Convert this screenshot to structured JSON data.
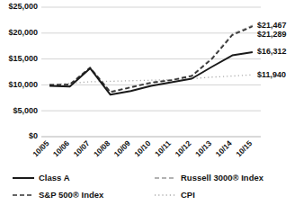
{
  "chart_data": {
    "type": "line",
    "categories": [
      "10/05",
      "10/06",
      "10/07",
      "10/08",
      "10/09",
      "10/10",
      "10/11",
      "10/12",
      "10/13",
      "10/14",
      "10/15"
    ],
    "series": [
      {
        "name": "Class A",
        "color": "#1a1a1a",
        "line_style": "solid",
        "values": [
          9800,
          9700,
          13200,
          8100,
          8800,
          9800,
          10500,
          11200,
          13500,
          15700,
          16312
        ]
      },
      {
        "name": "Russell 3000® Index",
        "color": "#999999",
        "line_style": "dashed",
        "values": [
          10000,
          10100,
          13400,
          8700,
          9600,
          10500,
          11000,
          11800,
          15200,
          19800,
          21467
        ]
      },
      {
        "name": "S&P 500® Index",
        "color": "#333333",
        "line_style": "dashed",
        "values": [
          10000,
          10100,
          13300,
          8600,
          9500,
          10400,
          10900,
          11700,
          15000,
          19600,
          21289
        ]
      },
      {
        "name": "CPI",
        "color": "#aaaaaa",
        "line_style": "dotted",
        "values": [
          10000,
          10300,
          10600,
          10700,
          10800,
          10900,
          11000,
          11200,
          11500,
          11700,
          11940
        ]
      }
    ],
    "ylim": [
      0,
      25000
    ],
    "yticks": [
      {
        "value": 0,
        "label": "$0"
      },
      {
        "value": 5000,
        "label": "$5,000"
      },
      {
        "value": 10000,
        "label": "$10,000"
      },
      {
        "value": 15000,
        "label": "$15,000"
      },
      {
        "value": 20000,
        "label": "$20,000"
      },
      {
        "value": 25000,
        "label": "$25,000"
      }
    ],
    "grid": true,
    "legend": "bottom",
    "annotations": [
      {
        "text": "$21,467",
        "value": 21467
      },
      {
        "text": "$21,289",
        "value": 21289
      },
      {
        "text": "$16,312",
        "value": 16312
      },
      {
        "text": "$11,940",
        "value": 11940
      }
    ]
  }
}
